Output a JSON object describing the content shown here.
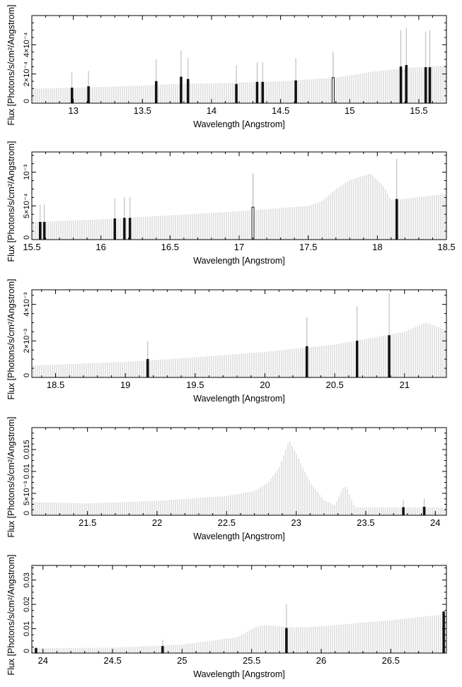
{
  "chart_data": [
    {
      "type": "bar",
      "xlabel": "Wavelength [Angstrom]",
      "ylabel": "Flux [Photons/s/cm²/Angstrom]",
      "xlim": [
        12.7,
        15.7
      ],
      "ylim": [
        0,
        0.0006
      ],
      "xticks": [
        13,
        13.5,
        14,
        14.5,
        15,
        15.5
      ],
      "xtick_labels": [
        "13",
        "13.5",
        "14",
        "14.5",
        "15",
        "15.5"
      ],
      "yticks": [
        0,
        0.0002,
        0.0004
      ],
      "ytick_labels": [
        "0",
        "2×10⁻⁴",
        "4×10⁻⁴"
      ],
      "continuum": [
        [
          12.7,
          0.0001
        ],
        [
          13.0,
          0.000105
        ],
        [
          13.5,
          0.00012
        ],
        [
          13.8,
          0.000135
        ],
        [
          14.0,
          0.000135
        ],
        [
          14.5,
          0.00015
        ],
        [
          14.9,
          0.000175
        ],
        [
          15.2,
          0.00022
        ],
        [
          15.4,
          0.00024
        ],
        [
          15.7,
          0.00026
        ]
      ],
      "lines": [
        {
          "x": 12.99,
          "y": 0.000105,
          "err": 0.00021,
          "hollow": false
        },
        {
          "x": 13.11,
          "y": 0.000115,
          "err": 0.00022,
          "hollow": false
        },
        {
          "x": 13.6,
          "y": 0.00015,
          "err": 0.0003,
          "hollow": false
        },
        {
          "x": 13.78,
          "y": 0.00018,
          "err": 0.00036,
          "hollow": false
        },
        {
          "x": 13.83,
          "y": 0.000165,
          "err": 0.00031,
          "hollow": false
        },
        {
          "x": 14.18,
          "y": 0.00013,
          "err": 0.00026,
          "hollow": false
        },
        {
          "x": 14.33,
          "y": 0.000145,
          "err": 0.00028,
          "hollow": false
        },
        {
          "x": 14.37,
          "y": 0.000145,
          "err": 0.00028,
          "hollow": false
        },
        {
          "x": 14.61,
          "y": 0.000155,
          "err": 0.00031,
          "hollow": false
        },
        {
          "x": 14.88,
          "y": 0.000175,
          "err": 0.00035,
          "hollow": true
        },
        {
          "x": 15.37,
          "y": 0.00025,
          "err": 0.0005,
          "hollow": false
        },
        {
          "x": 15.41,
          "y": 0.00026,
          "err": 0.00052,
          "hollow": false
        },
        {
          "x": 15.55,
          "y": 0.000245,
          "err": 0.00049,
          "hollow": false
        },
        {
          "x": 15.58,
          "y": 0.000245,
          "err": 0.0005,
          "hollow": false
        }
      ]
    },
    {
      "type": "bar",
      "xlabel": "Wavelength [Angstrom]",
      "ylabel": "Flux [Photons/s/cm²/Angstrom]",
      "xlim": [
        15.5,
        18.5
      ],
      "ylim": [
        0,
        0.0013
      ],
      "xticks": [
        15.5,
        16,
        16.5,
        17,
        17.5,
        18,
        18.5
      ],
      "xtick_labels": [
        "15.5",
        "16",
        "16.5",
        "17",
        "17.5",
        "18",
        "18.5"
      ],
      "yticks": [
        0,
        0.0005,
        0.001
      ],
      "ytick_labels": [
        "0",
        "5×10⁻⁴",
        "10⁻³"
      ],
      "continuum": [
        [
          15.5,
          0.00026
        ],
        [
          16.0,
          0.0003
        ],
        [
          16.5,
          0.00036
        ],
        [
          17.0,
          0.00042
        ],
        [
          17.5,
          0.0005
        ],
        [
          17.6,
          0.00057
        ],
        [
          17.7,
          0.00075
        ],
        [
          17.8,
          0.00088
        ],
        [
          17.95,
          0.00098
        ],
        [
          18.05,
          0.00078
        ],
        [
          18.1,
          0.00058
        ],
        [
          18.5,
          0.00068
        ]
      ],
      "lines": [
        {
          "x": 15.56,
          "y": 0.00026,
          "err": 0.00052,
          "hollow": false
        },
        {
          "x": 15.59,
          "y": 0.00026,
          "err": 0.00052,
          "hollow": false
        },
        {
          "x": 16.1,
          "y": 0.00031,
          "err": 0.00061,
          "hollow": false
        },
        {
          "x": 16.17,
          "y": 0.00032,
          "err": 0.00063,
          "hollow": false
        },
        {
          "x": 16.21,
          "y": 0.00032,
          "err": 0.00063,
          "hollow": false
        },
        {
          "x": 17.1,
          "y": 0.00048,
          "err": 0.00098,
          "hollow": true
        },
        {
          "x": 18.14,
          "y": 0.0006,
          "err": 0.0012,
          "hollow": false
        }
      ]
    },
    {
      "type": "bar",
      "xlabel": "Wavelength [Angstrom]",
      "ylabel": "Flux [Photons/s/cm²/Angstrom]",
      "xlim": [
        18.33,
        21.3
      ],
      "ylim": [
        0,
        0.0048
      ],
      "xticks": [
        18.5,
        19,
        19.5,
        20,
        20.5,
        21
      ],
      "xtick_labels": [
        "18.5",
        "19",
        "19.5",
        "20",
        "20.5",
        "21"
      ],
      "yticks": [
        0,
        0.002,
        0.004
      ],
      "ytick_labels": [
        "0",
        "2×10⁻³",
        "4×10⁻³"
      ],
      "continuum": [
        [
          18.33,
          0.00065
        ],
        [
          19.0,
          0.00085
        ],
        [
          19.5,
          0.0011
        ],
        [
          20.0,
          0.0014
        ],
        [
          20.5,
          0.0018
        ],
        [
          21.0,
          0.0025
        ],
        [
          21.15,
          0.003
        ],
        [
          21.3,
          0.0026
        ]
      ],
      "lines": [
        {
          "x": 19.16,
          "y": 0.001,
          "err": 0.002,
          "hollow": false
        },
        {
          "x": 20.3,
          "y": 0.0017,
          "err": 0.0033,
          "hollow": false
        },
        {
          "x": 20.66,
          "y": 0.002,
          "err": 0.0039,
          "hollow": false
        },
        {
          "x": 20.89,
          "y": 0.0023,
          "err": 0.0046,
          "hollow": false
        }
      ]
    },
    {
      "type": "bar",
      "xlabel": "Wavelength [Angstrom]",
      "ylabel": "Flux [Photons/s/cm²/Angstrom]",
      "xlim": [
        21.1,
        24.08
      ],
      "ylim": [
        0,
        0.02
      ],
      "xticks": [
        21.5,
        22,
        22.5,
        23,
        23.5,
        24
      ],
      "xtick_labels": [
        "21.5",
        "22",
        "22.5",
        "23",
        "23.5",
        "24"
      ],
      "yticks": [
        0,
        0.005,
        0.01,
        0.015
      ],
      "ytick_labels": [
        "0",
        "5×10⁻³",
        "0.01",
        "0.015"
      ],
      "continuum": [
        [
          21.1,
          0.003
        ],
        [
          21.5,
          0.0027
        ],
        [
          22.0,
          0.0033
        ],
        [
          22.5,
          0.0044
        ],
        [
          22.7,
          0.0055
        ],
        [
          22.8,
          0.0075
        ],
        [
          22.88,
          0.011
        ],
        [
          22.95,
          0.0172
        ],
        [
          23.0,
          0.014
        ],
        [
          23.1,
          0.0075
        ],
        [
          23.2,
          0.0035
        ],
        [
          23.28,
          0.0022
        ],
        [
          23.33,
          0.006
        ],
        [
          23.36,
          0.0066
        ],
        [
          23.42,
          0.0018
        ],
        [
          24.08,
          0.0018
        ]
      ],
      "lines": [
        {
          "x": 23.77,
          "y": 0.0018,
          "err": 0.0035,
          "hollow": false
        },
        {
          "x": 23.92,
          "y": 0.0019,
          "err": 0.0038,
          "hollow": false
        }
      ]
    },
    {
      "type": "bar",
      "xlabel": "Wavelength [Angstrom]",
      "ylabel": "Flux [Photons/s/cm²/Angstrom]",
      "xlim": [
        23.92,
        26.9
      ],
      "ylim": [
        0,
        0.036
      ],
      "xticks": [
        24,
        24.5,
        25,
        25.5,
        26,
        26.5
      ],
      "xtick_labels": [
        "24",
        "24.5",
        "25",
        "25.5",
        "26",
        "26.5"
      ],
      "yticks": [
        0,
        0.01,
        0.02,
        0.03
      ],
      "ytick_labels": [
        "0",
        "0.01",
        "0.02",
        "0.03"
      ],
      "continuum": [
        [
          23.92,
          0.002
        ],
        [
          24.5,
          0.0022
        ],
        [
          25.0,
          0.0035
        ],
        [
          25.4,
          0.0065
        ],
        [
          25.52,
          0.0105
        ],
        [
          25.6,
          0.0115
        ],
        [
          25.8,
          0.0105
        ],
        [
          26.0,
          0.011
        ],
        [
          26.5,
          0.0135
        ],
        [
          26.9,
          0.016
        ]
      ],
      "lines": [
        {
          "x": 23.95,
          "y": 0.002,
          "err": 0.0025,
          "hollow": false
        },
        {
          "x": 24.86,
          "y": 0.0028,
          "err": 0.0055,
          "hollow": false
        },
        {
          "x": 25.75,
          "y": 0.0102,
          "err": 0.02,
          "hollow": false
        },
        {
          "x": 26.88,
          "y": 0.017,
          "err": 0.017,
          "hollow": false
        }
      ]
    }
  ]
}
